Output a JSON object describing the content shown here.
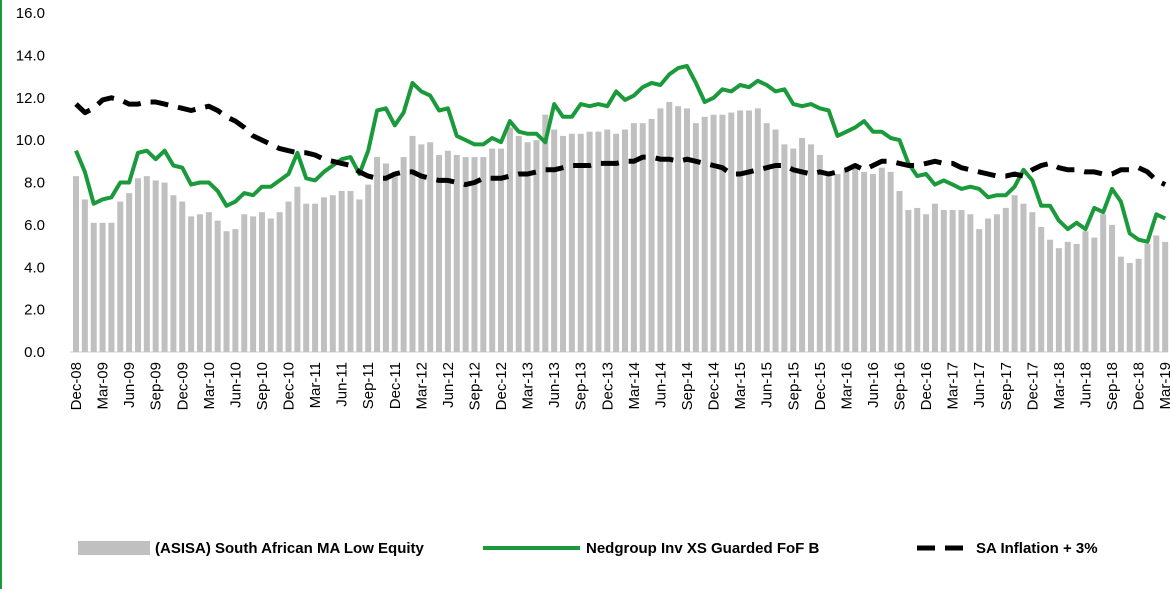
{
  "chart_data": {
    "type": "bar",
    "categories": [
      "Dec-08",
      null,
      null,
      "Mar-09",
      null,
      null,
      "Jun-09",
      null,
      null,
      "Sep-09",
      null,
      null,
      "Dec-09",
      null,
      null,
      "Mar-10",
      null,
      null,
      "Jun-10",
      null,
      null,
      "Sep-10",
      null,
      null,
      "Dec-10",
      null,
      null,
      "Mar-11",
      null,
      null,
      "Jun-11",
      null,
      null,
      "Sep-11",
      null,
      null,
      "Dec-11",
      null,
      null,
      "Mar-12",
      null,
      null,
      "Jun-12",
      null,
      null,
      "Sep-12",
      null,
      null,
      "Dec-12",
      null,
      null,
      "Mar-13",
      null,
      null,
      "Jun-13",
      null,
      null,
      "Sep-13",
      null,
      null,
      "Dec-13",
      null,
      null,
      "Mar-14",
      null,
      null,
      "Jun-14",
      null,
      null,
      "Sep-14",
      null,
      null,
      "Dec-14",
      null,
      null,
      "Mar-15",
      null,
      null,
      "Jun-15",
      null,
      null,
      "Sep-15",
      null,
      null,
      "Dec-15",
      null,
      null,
      "Mar-16",
      null,
      null,
      "Jun-16",
      null,
      null,
      "Sep-16",
      null,
      null,
      "Dec-16",
      null,
      null,
      "Mar-17",
      null,
      null,
      "Jun-17",
      null,
      null,
      "Sep-17",
      null,
      null,
      "Dec-17",
      null,
      null,
      "Mar-18",
      null,
      null,
      "Jun-18",
      null,
      null,
      "Sep-18",
      null,
      null,
      "Dec-18",
      null,
      null,
      "Mar-19"
    ],
    "series": [
      {
        "name": "(ASISA) South African MA Low Equity",
        "type": "bar",
        "color": "#c0c0c0",
        "values": [
          8.3,
          7.2,
          6.1,
          6.1,
          6.1,
          7.1,
          7.5,
          8.2,
          8.3,
          8.1,
          8.0,
          7.4,
          7.1,
          6.4,
          6.5,
          6.6,
          6.2,
          5.7,
          5.8,
          6.5,
          6.4,
          6.6,
          6.3,
          6.6,
          7.1,
          7.8,
          7.0,
          7.0,
          7.3,
          7.4,
          7.6,
          7.6,
          7.2,
          7.9,
          9.2,
          8.9,
          8.5,
          9.2,
          10.2,
          9.8,
          9.9,
          9.3,
          9.5,
          9.3,
          9.2,
          9.2,
          9.2,
          9.6,
          9.6,
          10.6,
          10.2,
          9.9,
          10.0,
          11.2,
          10.5,
          10.2,
          10.3,
          10.3,
          10.4,
          10.4,
          10.5,
          10.3,
          10.5,
          10.8,
          10.8,
          11.0,
          11.5,
          11.8,
          11.6,
          11.5,
          10.8,
          11.1,
          11.2,
          11.2,
          11.3,
          11.4,
          11.4,
          11.5,
          10.8,
          10.5,
          9.8,
          9.6,
          10.1,
          9.8,
          9.3,
          8.3,
          8.4,
          8.6,
          8.8,
          8.5,
          8.4,
          8.7,
          8.5,
          7.6,
          6.7,
          6.8,
          6.5,
          7.0,
          6.7,
          6.7,
          6.7,
          6.5,
          5.8,
          6.3,
          6.5,
          6.8,
          7.4,
          7.0,
          6.6,
          5.9,
          5.3,
          4.9,
          5.2,
          5.1,
          5.7,
          5.4,
          6.5,
          6.0,
          4.5,
          4.2,
          4.4,
          5.1,
          5.5,
          5.2
        ]
      },
      {
        "name": "Nedgroup Inv XS Guarded FoF B",
        "type": "line",
        "color": "#1a9a3a",
        "values": [
          9.5,
          8.5,
          7.0,
          7.2,
          7.3,
          8.0,
          8.0,
          9.4,
          9.5,
          9.1,
          9.5,
          8.8,
          8.7,
          7.9,
          8.0,
          8.0,
          7.6,
          6.9,
          7.1,
          7.5,
          7.4,
          7.8,
          7.8,
          8.1,
          8.4,
          9.4,
          8.2,
          8.1,
          8.5,
          8.8,
          9.1,
          9.2,
          8.4,
          9.5,
          11.4,
          11.5,
          10.7,
          11.3,
          12.7,
          12.3,
          12.1,
          11.4,
          11.5,
          10.2,
          10.0,
          9.8,
          9.8,
          10.1,
          9.9,
          10.9,
          10.4,
          10.3,
          10.3,
          9.9,
          11.7,
          11.1,
          11.1,
          11.7,
          11.6,
          11.7,
          11.6,
          12.3,
          11.9,
          12.1,
          12.5,
          12.7,
          12.6,
          13.1,
          13.4,
          13.5,
          12.7,
          11.8,
          12.0,
          12.4,
          12.3,
          12.6,
          12.5,
          12.8,
          12.6,
          12.3,
          12.4,
          11.7,
          11.6,
          11.7,
          11.5,
          11.4,
          10.2,
          10.4,
          10.6,
          10.9,
          10.4,
          10.4,
          10.1,
          10.0,
          8.9,
          8.3,
          8.4,
          7.9,
          8.1,
          7.9,
          7.7,
          7.8,
          7.7,
          7.3,
          7.4,
          7.4,
          7.8,
          8.6,
          8.1,
          6.9,
          6.9,
          6.2,
          5.8,
          6.1,
          5.8,
          6.8,
          6.6,
          7.7,
          7.1,
          5.6,
          5.3,
          5.2,
          6.5,
          6.3
        ]
      },
      {
        "name": "SA Inflation + 3%",
        "type": "line",
        "dashed": true,
        "color": "#000000",
        "values": [
          11.7,
          11.3,
          11.5,
          11.9,
          12.0,
          11.9,
          11.7,
          11.7,
          11.8,
          11.8,
          11.7,
          11.6,
          11.5,
          11.4,
          11.5,
          11.6,
          11.4,
          11.1,
          10.9,
          10.6,
          10.2,
          10.0,
          9.8,
          9.6,
          9.5,
          9.4,
          9.4,
          9.3,
          9.1,
          9.0,
          8.9,
          8.8,
          8.5,
          8.3,
          8.2,
          8.2,
          8.4,
          8.5,
          8.5,
          8.3,
          8.2,
          8.1,
          8.1,
          8.0,
          7.9,
          8.0,
          8.2,
          8.2,
          8.2,
          8.3,
          8.4,
          8.4,
          8.5,
          8.6,
          8.6,
          8.7,
          8.8,
          8.8,
          8.8,
          8.9,
          8.9,
          8.9,
          9.0,
          9.0,
          9.2,
          9.2,
          9.1,
          9.1,
          9.0,
          9.1,
          9.0,
          8.9,
          8.8,
          8.7,
          8.4,
          8.4,
          8.5,
          8.6,
          8.7,
          8.8,
          8.8,
          8.6,
          8.5,
          8.4,
          8.5,
          8.4,
          8.5,
          8.6,
          8.8,
          8.6,
          8.8,
          9.0,
          9.0,
          8.9,
          8.8,
          8.8,
          8.9,
          9.0,
          8.9,
          8.9,
          8.7,
          8.6,
          8.5,
          8.4,
          8.3,
          8.3,
          8.4,
          8.3,
          8.6,
          8.8,
          8.9,
          8.7,
          8.6,
          8.6,
          8.5,
          8.5,
          8.4,
          8.4,
          8.6,
          8.6,
          8.7,
          8.5,
          8.1,
          7.9
        ]
      }
    ],
    "ylim": [
      0,
      16
    ],
    "yticks": [
      {
        "value": 0,
        "label": "0.0"
      },
      {
        "value": 2,
        "label": "2.0"
      },
      {
        "value": 4,
        "label": "4.0"
      },
      {
        "value": 6,
        "label": "6.0"
      },
      {
        "value": 8,
        "label": "8.0"
      },
      {
        "value": 10,
        "label": "10.0"
      },
      {
        "value": 12,
        "label": "12.0"
      },
      {
        "value": 14,
        "label": "14.0"
      },
      {
        "value": 16,
        "label": "16.0"
      }
    ],
    "legend": "bottom"
  }
}
